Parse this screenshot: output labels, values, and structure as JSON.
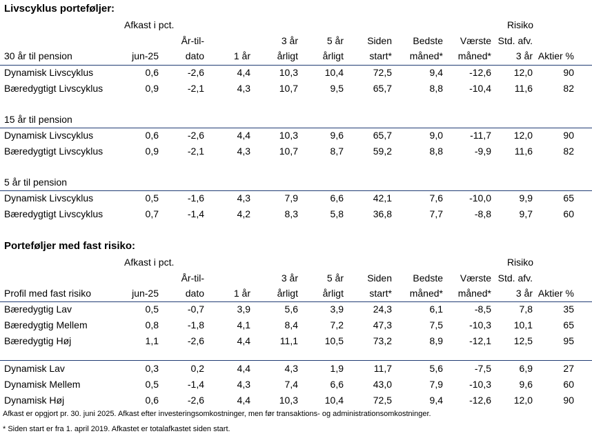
{
  "section1": {
    "title": "Livscyklus porteføljer:",
    "group_label": "Afkast i pct.",
    "risk_label": "Risiko",
    "first_col_header": "30 år til pension",
    "columns": [
      {
        "top": "",
        "bottom": "jun-25"
      },
      {
        "top": "År-til-",
        "bottom": "dato"
      },
      {
        "top": "",
        "bottom": "1 år"
      },
      {
        "top": "3 år",
        "bottom": "årligt"
      },
      {
        "top": "5 år",
        "bottom": "årligt"
      },
      {
        "top": "Siden",
        "bottom": "start*"
      },
      {
        "top": "Bedste",
        "bottom": "måned*"
      },
      {
        "top": "Værste",
        "bottom": "måned*"
      },
      {
        "top": "Std. afv.",
        "bottom": "3 år"
      },
      {
        "top": "",
        "bottom": "Aktier %"
      }
    ],
    "groups": [
      {
        "label": "",
        "rows": [
          {
            "name": "Dynamisk Livscyklus",
            "values": [
              "0,6",
              "-2,6",
              "4,4",
              "10,3",
              "10,4",
              "72,5",
              "9,4",
              "-12,6",
              "12,0",
              "90"
            ]
          },
          {
            "name": "Bæredygtigt Livscyklus",
            "values": [
              "0,9",
              "-2,1",
              "4,3",
              "10,7",
              "9,5",
              "65,7",
              "8,8",
              "-10,4",
              "11,6",
              "82"
            ]
          }
        ]
      },
      {
        "label": "15 år til pension",
        "rows": [
          {
            "name": "Dynamisk Livscyklus",
            "values": [
              "0,6",
              "-2,6",
              "4,4",
              "10,3",
              "9,6",
              "65,7",
              "9,0",
              "-11,7",
              "12,0",
              "90"
            ]
          },
          {
            "name": "Bæredygtigt Livscyklus",
            "values": [
              "0,9",
              "-2,1",
              "4,3",
              "10,7",
              "8,7",
              "59,2",
              "8,8",
              "-9,9",
              "11,6",
              "82"
            ]
          }
        ]
      },
      {
        "label": "5 år til pension",
        "rows": [
          {
            "name": "Dynamisk Livscyklus",
            "values": [
              "0,5",
              "-1,6",
              "4,3",
              "7,9",
              "6,6",
              "42,1",
              "7,6",
              "-10,0",
              "9,9",
              "65"
            ]
          },
          {
            "name": "Bæredygtigt Livscyklus",
            "values": [
              "0,7",
              "-1,4",
              "4,2",
              "8,3",
              "5,8",
              "36,8",
              "7,7",
              "-8,8",
              "9,7",
              "60"
            ]
          }
        ]
      }
    ]
  },
  "section2": {
    "title": "Porteføljer med fast risiko:",
    "group_label": "Afkast i pct.",
    "risk_label": "Risiko",
    "first_col_header": "Profil med fast risiko",
    "groups": [
      {
        "rows": [
          {
            "name": "Bæredygtig Lav",
            "values": [
              "0,5",
              "-0,7",
              "3,9",
              "5,6",
              "3,9",
              "24,3",
              "6,1",
              "-8,5",
              "7,8",
              "35"
            ]
          },
          {
            "name": "Bæredygtig Mellem",
            "values": [
              "0,8",
              "-1,8",
              "4,1",
              "8,4",
              "7,2",
              "47,3",
              "7,5",
              "-10,3",
              "10,1",
              "65"
            ]
          },
          {
            "name": "Bæredygtig Høj",
            "values": [
              "1,1",
              "-2,6",
              "4,4",
              "11,1",
              "10,5",
              "73,2",
              "8,9",
              "-12,1",
              "12,5",
              "95"
            ]
          }
        ]
      },
      {
        "rows": [
          {
            "name": "Dynamisk Lav",
            "values": [
              "0,3",
              "0,2",
              "4,4",
              "4,3",
              "1,9",
              "11,7",
              "5,6",
              "-7,5",
              "6,9",
              "27"
            ]
          },
          {
            "name": "Dynamisk Mellem",
            "values": [
              "0,5",
              "-1,4",
              "4,3",
              "7,4",
              "6,6",
              "43,0",
              "7,9",
              "-10,3",
              "9,6",
              "60"
            ]
          },
          {
            "name": "Dynamisk Høj",
            "values": [
              "0,6",
              "-2,6",
              "4,4",
              "10,3",
              "10,4",
              "72,5",
              "9,4",
              "-12,6",
              "12,0",
              "90"
            ]
          }
        ]
      }
    ]
  },
  "footnotes": [
    "Afkast er opgjort pr. 30. juni 2025. Afkast efter investeringsomkostninger, men før transaktions- og administrationsomkostninger.",
    "* Siden start er fra 1. april 2019. Afkastet er totalafkastet siden start."
  ],
  "colors": {
    "rule": "#1f3b73",
    "text": "#000000"
  }
}
